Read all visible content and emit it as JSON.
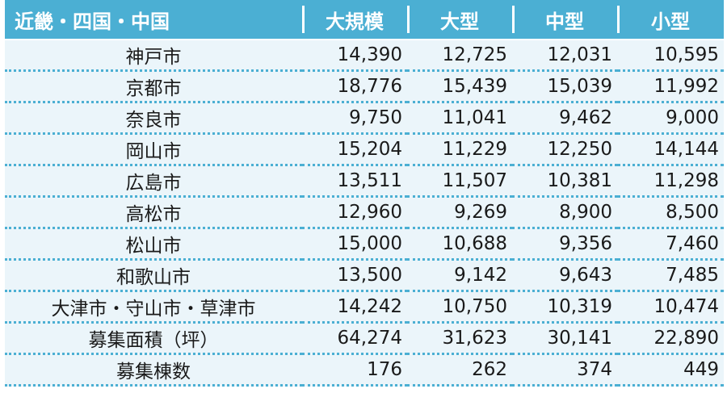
{
  "table": {
    "headers": [
      "近畿・四国・中国",
      "大規模",
      "大型",
      "中型",
      "小型"
    ],
    "rows": [
      [
        "神戸市",
        "14,390",
        "12,725",
        "12,031",
        "10,595"
      ],
      [
        "京都市",
        "18,776",
        "15,439",
        "15,039",
        "11,992"
      ],
      [
        "奈良市",
        "9,750",
        "11,041",
        "9,462",
        "9,000"
      ],
      [
        "岡山市",
        "15,204",
        "11,229",
        "12,250",
        "14,144"
      ],
      [
        "広島市",
        "13,511",
        "11,507",
        "10,381",
        "11,298"
      ],
      [
        "高松市",
        "12,960",
        "9,269",
        "8,900",
        "8,500"
      ],
      [
        "松山市",
        "15,000",
        "10,688",
        "9,356",
        "7,460"
      ],
      [
        "和歌山市",
        "13,500",
        "9,142",
        "9,643",
        "7,485"
      ],
      [
        "大津市・守山市・草津市",
        "14,242",
        "10,750",
        "10,319",
        "10,474"
      ],
      [
        "募集面積（坪）",
        "64,274",
        "31,623",
        "30,141",
        "22,890"
      ],
      [
        "募集棟数",
        "176",
        "262",
        "374",
        "449"
      ]
    ]
  },
  "colors": {
    "header_bg": "#4bafd3",
    "row_bg": "#ebf5fa",
    "divider": "#4bafd3"
  }
}
